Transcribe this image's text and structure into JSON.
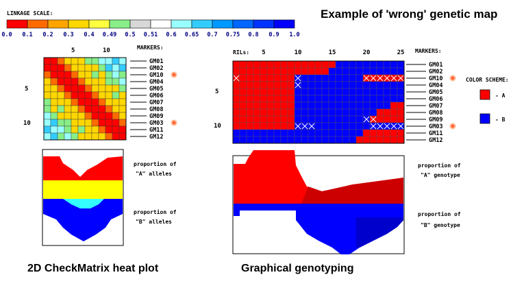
{
  "title": "Example of 'wrong' genetic map",
  "linkage_scale": {
    "label": "LINKAGE SCALE:",
    "ticks": [
      "0.0",
      "0.1",
      "0.2",
      "0.3",
      "0.4",
      "0.49",
      "0.5",
      "0.51",
      "0.6",
      "0.65",
      "0.7",
      "0.75",
      "0.8",
      "0.9",
      "1.0"
    ],
    "colors": [
      "#ff0000",
      "#ff6a00",
      "#ffa500",
      "#ffd700",
      "#ffff40",
      "#88ee88",
      "#d8d8d8",
      "#ffffff",
      "#99ffff",
      "#33ccff",
      "#0099ff",
      "#0066ff",
      "#0033ff",
      "#0000ff"
    ]
  },
  "heatmap": {
    "markers_label": "MARKERS:",
    "top_ticks": [
      "5",
      "10"
    ],
    "left_ticks": [
      "5",
      "10"
    ],
    "markers": [
      "GM01",
      "GM02",
      "GM10",
      "GM04",
      "GM05",
      "GM06",
      "GM07",
      "GM08",
      "GM09",
      "GM03",
      "GM11",
      "GM12"
    ],
    "flagged_markers": [
      "GM10",
      "GM03"
    ],
    "caption": "2D CheckMatrix heat plot",
    "proportion_a": [
      "proportion of",
      "\"A\" alleles"
    ],
    "proportion_b": [
      "proportion of",
      "\"B\" alleles"
    ]
  },
  "genotype": {
    "rils_label": "RILs:",
    "markers_label": "MARKERS:",
    "top_ticks": [
      "5",
      "10",
      "15",
      "20",
      "25"
    ],
    "left_ticks": [
      "5",
      "10"
    ],
    "markers": [
      "GM01",
      "GM02",
      "GM10",
      "GM04",
      "GM05",
      "GM06",
      "GM07",
      "GM08",
      "GM09",
      "GM03",
      "GM11",
      "GM12"
    ],
    "flagged_markers": [
      "GM10",
      "GM03"
    ],
    "color_scheme_label": "COLOR SCHEME:",
    "legend": [
      {
        "label": "- A",
        "color": "#ff0000"
      },
      {
        "label": "- B",
        "color": "#0000ff"
      }
    ],
    "caption": "Graphical genotyping",
    "proportion_a": [
      "proportion of",
      "\"A\" genotype"
    ],
    "proportion_b": [
      "proportion of",
      "\"B\" genotype"
    ]
  }
}
